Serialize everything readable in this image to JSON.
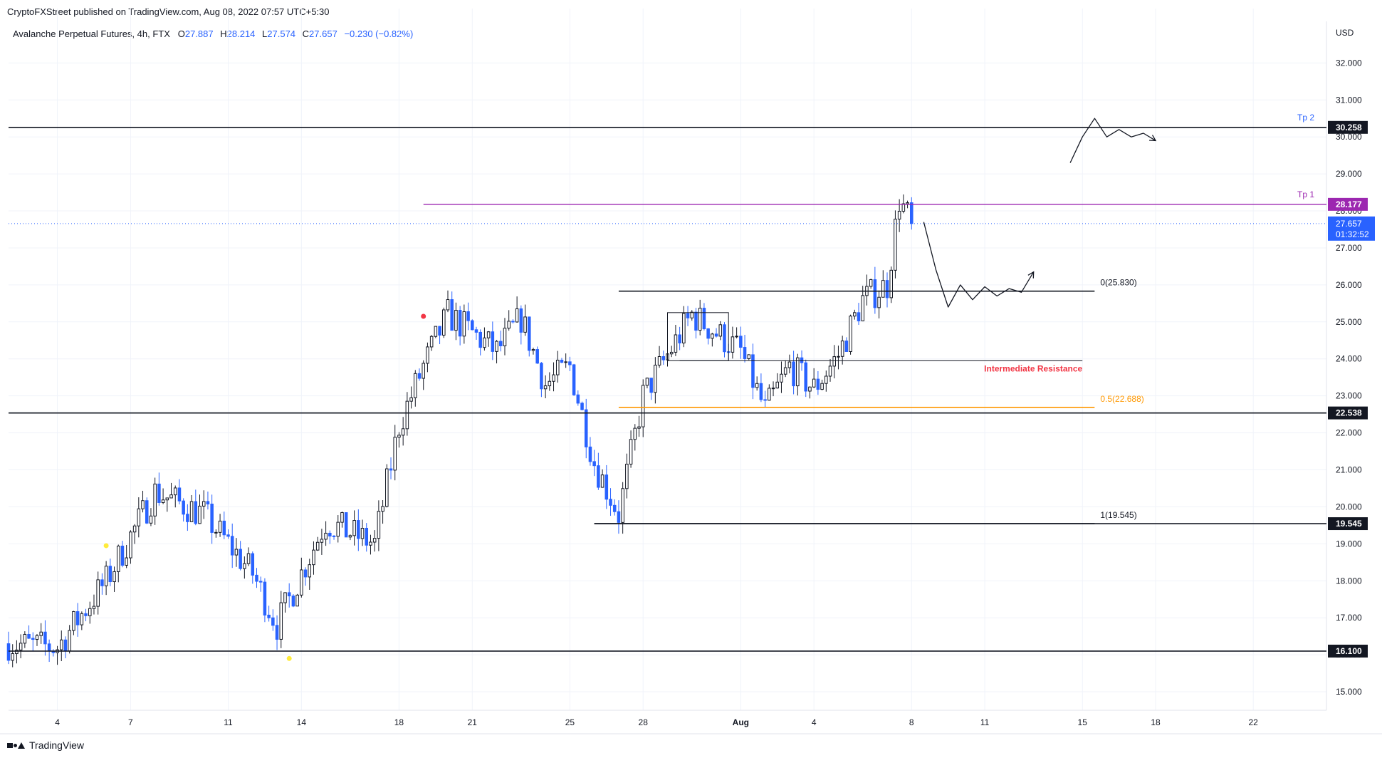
{
  "header": {
    "publisher_line": "CryptoFXStreet published on TradingView.com, Aug 08, 2022 07:57 UTC+5:30"
  },
  "legend": {
    "symbol_line": "Avalanche Perpetual Futures, 4h, FTX",
    "open_label": "O",
    "open": "27.887",
    "high_label": "H",
    "high": "28.214",
    "low_label": "L",
    "low": "27.574",
    "close_label": "C",
    "close": "27.657",
    "change": "−0.230 (−0.82%)"
  },
  "footer": {
    "brand": "TradingView"
  },
  "colors": {
    "up_candle": "#ffffff",
    "up_border": "#131722",
    "down_candle": "#2962ff",
    "tp_line": "#9c27b0",
    "fib_half": "#ff9800",
    "current_price": "#2962ff",
    "grid": "#f0f3fa",
    "resistance_text": "#f23645"
  },
  "chart_data": {
    "type": "candlestick",
    "currency": "USD",
    "ylim": [
      14.5,
      32.7
    ],
    "y_ticks": [
      "15.000",
      "16.000",
      "17.000",
      "18.000",
      "19.000",
      "20.000",
      "21.000",
      "22.000",
      "23.000",
      "24.000",
      "25.000",
      "26.000",
      "27.000",
      "28.000",
      "29.000",
      "30.000",
      "31.000",
      "32.000"
    ],
    "x_ticks": [
      "4",
      "7",
      "11",
      "14",
      "18",
      "21",
      "25",
      "28",
      "Aug",
      "4",
      "8",
      "11",
      "15",
      "18",
      "22"
    ],
    "time_axis": {
      "start": "2022-07-02",
      "end": "2022-08-25",
      "ticks": [
        "2022-07-04",
        "2022-07-07",
        "2022-07-11",
        "2022-07-14",
        "2022-07-18",
        "2022-07-21",
        "2022-07-25",
        "2022-07-28",
        "2022-08-01",
        "2022-08-04",
        "2022-08-08",
        "2022-08-11",
        "2022-08-15",
        "2022-08-18",
        "2022-08-22"
      ]
    },
    "anchor_points": [
      {
        "date": "2022-07-02",
        "close": 16.3
      },
      {
        "date": "2022-07-04",
        "close": 16.2
      },
      {
        "date": "2022-07-06",
        "close": 18.0
      },
      {
        "date": "2022-07-08",
        "close": 20.4
      },
      {
        "date": "2022-07-10",
        "close": 19.8
      },
      {
        "date": "2022-07-12",
        "close": 18.2
      },
      {
        "date": "2022-07-13",
        "close": 16.8
      },
      {
        "date": "2022-07-15",
        "close": 19.6
      },
      {
        "date": "2022-07-17",
        "close": 19.0
      },
      {
        "date": "2022-07-18",
        "close": 22.2
      },
      {
        "date": "2022-07-19",
        "close": 23.8
      },
      {
        "date": "2022-07-20",
        "close": 25.2
      },
      {
        "date": "2022-07-22",
        "close": 24.2
      },
      {
        "date": "2022-07-23",
        "close": 25.1
      },
      {
        "date": "2022-07-24",
        "close": 23.3
      },
      {
        "date": "2022-07-25",
        "close": 23.8
      },
      {
        "date": "2022-07-26",
        "close": 21.2
      },
      {
        "date": "2022-07-27",
        "close": 19.8
      },
      {
        "date": "2022-07-28",
        "close": 23.0
      },
      {
        "date": "2022-07-30",
        "close": 25.2
      },
      {
        "date": "2022-08-01",
        "close": 24.2
      },
      {
        "date": "2022-08-02",
        "close": 22.6
      },
      {
        "date": "2022-08-03",
        "close": 23.8
      },
      {
        "date": "2022-08-04",
        "close": 23.2
      },
      {
        "date": "2022-08-05",
        "close": 24.1
      },
      {
        "date": "2022-08-06",
        "close": 25.6
      },
      {
        "date": "2022-08-07",
        "close": 26.0
      },
      {
        "date": "2022-08-07 12:00",
        "close": 28.3
      },
      {
        "date": "2022-08-08",
        "close": 27.657
      }
    ],
    "horizontal_levels": [
      {
        "name": "tp2-line",
        "price": 30.258,
        "label": "30.258",
        "color": "#131722",
        "from": "2022-07-02",
        "to": "2022-08-25"
      },
      {
        "name": "tp1-line",
        "price": 28.177,
        "label": "28.177",
        "color": "#9c27b0",
        "from": "2022-07-19",
        "to": "2022-08-25"
      },
      {
        "name": "support-22538",
        "price": 22.538,
        "label": "22.538",
        "color": "#131722",
        "from": "2022-07-02",
        "to": "2022-08-25"
      },
      {
        "name": "support-19545",
        "price": 19.545,
        "label": "19.545",
        "color": "#131722",
        "from": "2022-07-26",
        "to": "2022-08-25"
      },
      {
        "name": "support-16100",
        "price": 16.1,
        "label": "16.100",
        "color": "#131722",
        "from": "2022-07-02",
        "to": "2022-08-25"
      }
    ],
    "fib_levels": [
      {
        "name": "fib-0",
        "price": 25.83,
        "text": "0(25.830)",
        "color": "#131722",
        "from": "2022-07-27",
        "to": "2022-08-15 12:00"
      },
      {
        "name": "fib-05",
        "price": 22.688,
        "text": "0.5(22.688)",
        "color": "#ff9800",
        "from": "2022-07-27",
        "to": "2022-08-15 12:00"
      },
      {
        "name": "fib-1",
        "price": 19.545,
        "text": "1(19.545)",
        "color": "#131722",
        "from": "2022-07-26",
        "to": "2022-08-15 12:00"
      }
    ],
    "intermediate_resistance": {
      "price": 23.95,
      "text": "Intermediate Resistance",
      "from": "2022-07-29 12:00",
      "to": "2022-08-15"
    },
    "range_box": {
      "top": 25.25,
      "bottom": 23.95,
      "from": "2022-07-29",
      "to": "2022-07-31 12:00"
    },
    "targets": [
      {
        "text": "Tp 2",
        "price": 30.258,
        "color": "#2962ff"
      },
      {
        "text": "Tp 1",
        "price": 28.177,
        "color": "#9c27b0"
      }
    ],
    "current_price": {
      "value": "27.657",
      "countdown": "01:32:52"
    },
    "projection_near": [
      [
        "2022-08-08 12:00",
        27.7
      ],
      [
        "2022-08-09",
        26.4
      ],
      [
        "2022-08-09 12:00",
        25.4
      ],
      [
        "2022-08-10",
        26.0
      ],
      [
        "2022-08-10 12:00",
        25.6
      ],
      [
        "2022-08-11",
        25.95
      ],
      [
        "2022-08-11 12:00",
        25.7
      ],
      [
        "2022-08-12",
        25.9
      ],
      [
        "2022-08-12 12:00",
        25.8
      ],
      [
        "2022-08-13",
        26.35
      ]
    ],
    "projection_far": [
      [
        "2022-08-14 12:00",
        29.3
      ],
      [
        "2022-08-15",
        30.0
      ],
      [
        "2022-08-15 12:00",
        30.5
      ],
      [
        "2022-08-16",
        30.0
      ],
      [
        "2022-08-16 12:00",
        30.2
      ],
      [
        "2022-08-17",
        30.0
      ],
      [
        "2022-08-17 12:00",
        30.1
      ],
      [
        "2022-08-18",
        29.9
      ]
    ],
    "signal_markers": [
      {
        "date": "2022-07-06",
        "price": 18.95,
        "color": "#ffeb3b"
      },
      {
        "date": "2022-07-13 12:00",
        "price": 15.9,
        "color": "#ffeb3b"
      },
      {
        "date": "2022-07-19",
        "price": 25.15,
        "color": "#f23645"
      }
    ]
  }
}
